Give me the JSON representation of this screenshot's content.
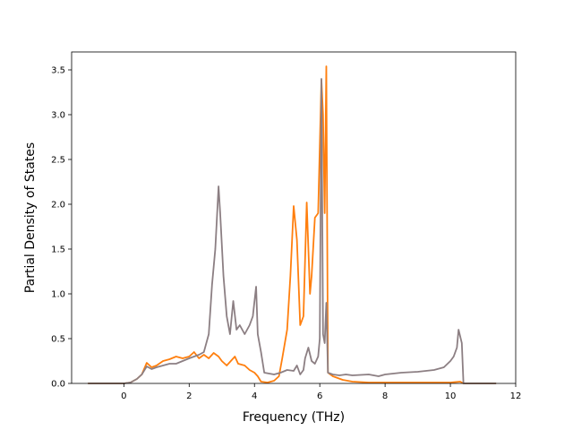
{
  "chart_data": {
    "type": "line",
    "title": "",
    "xlabel": "Frequency (THz)",
    "ylabel": "Partial Density of States",
    "xlim": [
      -1.6,
      12
    ],
    "ylim": [
      0,
      3.7
    ],
    "xticks": [
      0,
      2,
      4,
      6,
      8,
      10,
      12
    ],
    "yticks": [
      0.0,
      0.5,
      1.0,
      1.5,
      2.0,
      2.5,
      3.0,
      3.5
    ],
    "xtick_labels": [
      "0",
      "2",
      "4",
      "6",
      "8",
      "10",
      "12"
    ],
    "ytick_labels": [
      "0.0",
      "0.5",
      "1.0",
      "1.5",
      "2.0",
      "2.5",
      "3.0",
      "3.5"
    ],
    "grid": false,
    "legend": "none",
    "series": [
      {
        "color": "#ff7f0e",
        "x": [
          -1.1,
          0.0,
          0.2,
          0.4,
          0.55,
          0.7,
          0.85,
          1.0,
          1.2,
          1.4,
          1.6,
          1.8,
          2.0,
          2.15,
          2.3,
          2.45,
          2.6,
          2.75,
          2.9,
          3.0,
          3.15,
          3.3,
          3.4,
          3.5,
          3.7,
          3.85,
          4.0,
          4.1,
          4.2,
          4.4,
          4.6,
          4.75,
          4.85,
          5.0,
          5.1,
          5.2,
          5.3,
          5.4,
          5.5,
          5.6,
          5.7,
          5.75,
          5.85,
          5.95,
          6.05,
          6.1,
          6.15,
          6.2,
          6.25,
          6.4,
          6.7,
          7.0,
          7.5,
          8.0,
          9.0,
          10.0,
          10.3,
          10.4,
          11.4
        ],
        "values": [
          0.0,
          0.0,
          0.01,
          0.05,
          0.1,
          0.23,
          0.18,
          0.2,
          0.25,
          0.27,
          0.3,
          0.28,
          0.3,
          0.35,
          0.28,
          0.32,
          0.28,
          0.34,
          0.3,
          0.25,
          0.2,
          0.26,
          0.3,
          0.22,
          0.2,
          0.15,
          0.12,
          0.08,
          0.02,
          0.01,
          0.03,
          0.08,
          0.28,
          0.6,
          1.2,
          1.98,
          1.6,
          0.65,
          0.75,
          2.02,
          1.0,
          1.2,
          1.85,
          1.9,
          3.39,
          3.0,
          1.9,
          3.54,
          0.12,
          0.08,
          0.04,
          0.02,
          0.01,
          0.01,
          0.01,
          0.01,
          0.02,
          0.0,
          0.0
        ]
      },
      {
        "color": "#8c7f83",
        "x": [
          -1.1,
          0.0,
          0.2,
          0.4,
          0.55,
          0.7,
          0.85,
          1.0,
          1.2,
          1.4,
          1.6,
          1.8,
          2.0,
          2.15,
          2.3,
          2.45,
          2.6,
          2.7,
          2.8,
          2.9,
          2.95,
          3.05,
          3.15,
          3.25,
          3.35,
          3.45,
          3.55,
          3.7,
          3.85,
          3.95,
          4.05,
          4.1,
          4.2,
          4.3,
          4.6,
          4.8,
          5.0,
          5.2,
          5.3,
          5.4,
          5.5,
          5.55,
          5.65,
          5.75,
          5.85,
          5.95,
          6.0,
          6.05,
          6.1,
          6.15,
          6.2,
          6.25,
          6.4,
          6.6,
          6.8,
          7.0,
          7.5,
          7.8,
          8.0,
          8.5,
          9.0,
          9.5,
          9.8,
          10.0,
          10.1,
          10.2,
          10.25,
          10.35,
          10.4,
          11.4
        ],
        "values": [
          0.0,
          0.0,
          0.01,
          0.05,
          0.1,
          0.19,
          0.16,
          0.18,
          0.2,
          0.22,
          0.22,
          0.25,
          0.28,
          0.3,
          0.32,
          0.35,
          0.55,
          1.1,
          1.5,
          2.2,
          1.9,
          1.2,
          0.75,
          0.55,
          0.92,
          0.6,
          0.65,
          0.55,
          0.65,
          0.75,
          1.08,
          0.55,
          0.35,
          0.12,
          0.1,
          0.12,
          0.15,
          0.14,
          0.2,
          0.1,
          0.15,
          0.28,
          0.4,
          0.25,
          0.22,
          0.3,
          0.5,
          3.4,
          0.55,
          0.45,
          0.9,
          0.12,
          0.1,
          0.09,
          0.1,
          0.09,
          0.1,
          0.08,
          0.1,
          0.12,
          0.13,
          0.15,
          0.18,
          0.25,
          0.3,
          0.4,
          0.6,
          0.45,
          0.0,
          0.0
        ]
      }
    ]
  }
}
